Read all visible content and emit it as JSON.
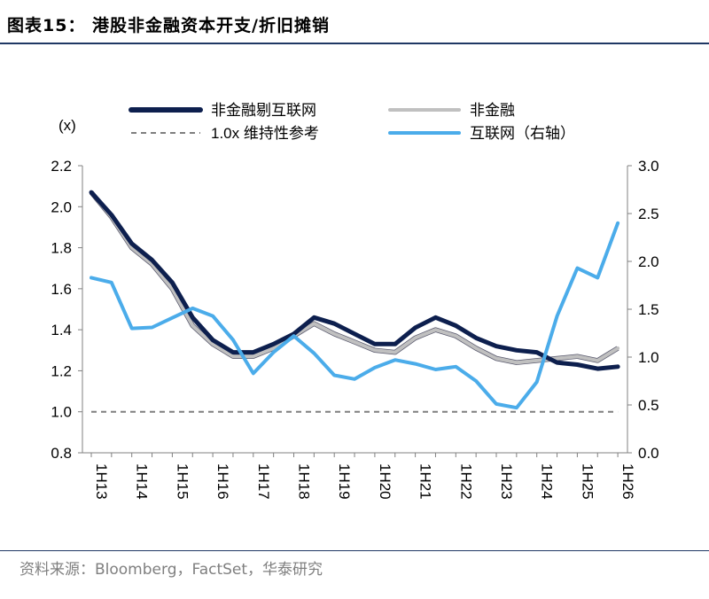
{
  "figure": {
    "title": "图表15：  港股非金融资本开支/折旧摊销",
    "source": "资料来源：Bloomberg，FactSet，华泰研究"
  },
  "colors": {
    "navy": "#0d1f4e",
    "grey": "#c0c0c0",
    "blue": "#4bacea",
    "dashed": "#7f7f7f",
    "rule": "#1f3864"
  },
  "chart_data": {
    "type": "line",
    "left_axis_unit": "(x)",
    "x": [
      "1H13",
      "2H13",
      "1H14",
      "2H14",
      "1H15",
      "2H15",
      "1H16",
      "2H16",
      "1H17",
      "2H17",
      "1H18",
      "2H18",
      "1H19",
      "2H19",
      "1H20",
      "2H20",
      "1H21",
      "2H21",
      "1H22",
      "2H22",
      "1H23",
      "2H23",
      "1H24",
      "2H24",
      "1H25",
      "2H25",
      "1H26"
    ],
    "tick_labels": [
      "1H13",
      "1H14",
      "1H15",
      "1H16",
      "1H17",
      "1H18",
      "1H19",
      "1H20",
      "1H21",
      "1H22",
      "1H23",
      "1H24",
      "1H25",
      "1H26"
    ],
    "ylim_left": [
      0.8,
      2.2
    ],
    "yticks_left": [
      "0.8",
      "1.0",
      "1.2",
      "1.4",
      "1.6",
      "1.8",
      "2.0",
      "2.2"
    ],
    "ylim_right": [
      0.0,
      3.0
    ],
    "yticks_right": [
      "0.0",
      "0.5",
      "1.0",
      "1.5",
      "2.0",
      "2.5",
      "3.0"
    ],
    "legend_position": "top",
    "series": [
      {
        "name": "非金融剔互联网",
        "axis": "left",
        "color": "#0d1f4e",
        "width": 5,
        "values": [
          2.07,
          1.96,
          1.82,
          1.74,
          1.63,
          1.46,
          1.35,
          1.29,
          1.29,
          1.33,
          1.38,
          1.46,
          1.43,
          1.38,
          1.33,
          1.33,
          1.41,
          1.46,
          1.42,
          1.36,
          1.32,
          1.3,
          1.29,
          1.24,
          1.23,
          1.21,
          1.22
        ]
      },
      {
        "name": "非金融",
        "axis": "left",
        "color": "#c0c0c0",
        "width": 4,
        "values": [
          2.07,
          1.95,
          1.8,
          1.72,
          1.6,
          1.42,
          1.33,
          1.27,
          1.27,
          1.31,
          1.37,
          1.43,
          1.38,
          1.34,
          1.3,
          1.29,
          1.36,
          1.4,
          1.37,
          1.31,
          1.26,
          1.24,
          1.25,
          1.26,
          1.27,
          1.25,
          1.31
        ]
      },
      {
        "name": "1.0x 维持性参考",
        "axis": "left",
        "color": "#7f7f7f",
        "dashed": true,
        "width": 2,
        "values": [
          1.0,
          1.0,
          1.0,
          1.0,
          1.0,
          1.0,
          1.0,
          1.0,
          1.0,
          1.0,
          1.0,
          1.0,
          1.0,
          1.0,
          1.0,
          1.0,
          1.0,
          1.0,
          1.0,
          1.0,
          1.0,
          1.0,
          1.0,
          1.0,
          1.0,
          1.0,
          1.0
        ]
      },
      {
        "name": "互联网（右轴）",
        "axis": "right",
        "color": "#4bacea",
        "width": 4,
        "values": [
          1.83,
          1.78,
          1.3,
          1.31,
          1.41,
          1.51,
          1.43,
          1.18,
          0.83,
          1.05,
          1.22,
          1.04,
          0.81,
          0.77,
          0.89,
          0.97,
          0.93,
          0.87,
          0.9,
          0.75,
          0.51,
          0.47,
          0.74,
          1.43,
          1.93,
          1.83,
          2.4
        ]
      }
    ]
  }
}
